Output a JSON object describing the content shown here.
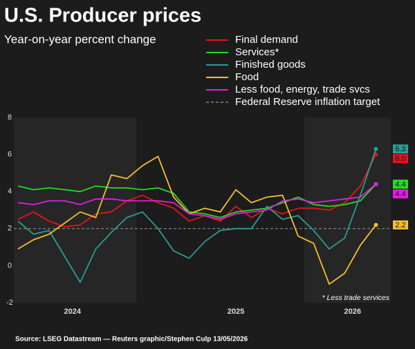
{
  "chart_data": {
    "type": "line",
    "title": "U.S. Producer prices",
    "subtitle": "Year-on-year percent change",
    "annotation": "* Less trade services",
    "source": "Source: LSEG Datastream — Reuters graphic/Stephen Culp 13/05/2026",
    "categories": [
      null,
      null,
      null,
      null,
      null,
      null,
      null,
      null,
      null,
      null,
      null,
      null,
      null,
      null,
      null,
      null,
      null,
      null,
      null,
      null,
      null,
      null,
      null,
      null
    ],
    "xticks": [
      {
        "value": 3.5,
        "label": "2024"
      },
      {
        "value": 14,
        "label": "2025"
      },
      {
        "value": 21.5,
        "label": "2026"
      }
    ],
    "ylim": [
      -2,
      8
    ],
    "yticks": [
      -2,
      0,
      2,
      4,
      6,
      8
    ],
    "series": [
      {
        "name": "Final demand",
        "color": "#e8141b",
        "values": [
          2.5,
          2.9,
          2.4,
          2.1,
          2.2,
          2.8,
          2.9,
          3.5,
          3.8,
          3.4,
          3.1,
          2.4,
          2.7,
          2.4,
          3.2,
          2.6,
          3.1,
          2.8,
          3.1,
          3.1,
          3.0,
          3.4,
          4.3,
          6.0
        ],
        "value_labels": [
          null,
          null,
          null,
          null,
          null,
          null,
          null,
          null,
          null,
          null,
          null,
          null,
          null,
          null,
          null,
          null,
          null,
          null,
          null,
          null,
          null,
          null,
          null,
          "6.0"
        ]
      },
      {
        "name": "Services*",
        "color": "#22dd22",
        "values": [
          4.3,
          4.1,
          4.2,
          4.1,
          4.0,
          4.3,
          4.2,
          4.2,
          4.1,
          4.2,
          3.9,
          2.9,
          2.8,
          2.6,
          2.9,
          3.0,
          3.1,
          3.4,
          3.7,
          3.3,
          3.2,
          3.3,
          3.5,
          4.4
        ],
        "value_labels": [
          null,
          null,
          null,
          null,
          null,
          null,
          null,
          null,
          null,
          null,
          null,
          null,
          null,
          null,
          null,
          null,
          null,
          null,
          null,
          null,
          null,
          null,
          null,
          "4.4"
        ]
      },
      {
        "name": "Finished goods",
        "color": "#2a9d94",
        "values": [
          2.4,
          1.7,
          1.9,
          0.5,
          -0.9,
          0.9,
          1.8,
          2.6,
          2.9,
          2.0,
          0.8,
          0.4,
          1.3,
          1.9,
          2.0,
          2.0,
          3.2,
          2.5,
          2.7,
          1.9,
          0.9,
          1.5,
          3.8,
          6.3
        ],
        "value_labels": [
          null,
          null,
          null,
          null,
          null,
          null,
          null,
          null,
          null,
          null,
          null,
          null,
          null,
          null,
          null,
          null,
          null,
          null,
          null,
          null,
          null,
          null,
          null,
          "6.3"
        ]
      },
      {
        "name": "Food",
        "color": "#f2c12e",
        "values": [
          0.9,
          1.4,
          1.7,
          2.3,
          2.9,
          2.6,
          4.9,
          4.7,
          5.4,
          5.9,
          3.7,
          2.8,
          3.1,
          2.9,
          4.1,
          3.4,
          3.7,
          3.8,
          1.6,
          1.2,
          -1.0,
          -0.4,
          1.1,
          2.2
        ],
        "value_labels": [
          null,
          null,
          null,
          null,
          null,
          null,
          null,
          null,
          null,
          null,
          null,
          null,
          null,
          null,
          null,
          null,
          null,
          null,
          null,
          null,
          null,
          null,
          null,
          "2.2"
        ]
      },
      {
        "name": "Less food, energy, trade svcs",
        "color": "#e020e0",
        "values": [
          3.4,
          3.3,
          3.5,
          3.5,
          3.3,
          3.6,
          3.6,
          3.5,
          3.5,
          3.5,
          3.4,
          2.8,
          2.7,
          2.5,
          2.8,
          2.9,
          3.0,
          3.5,
          3.6,
          3.4,
          3.5,
          3.6,
          3.7,
          4.4
        ],
        "value_labels": [
          null,
          null,
          null,
          null,
          null,
          null,
          null,
          null,
          null,
          null,
          null,
          null,
          null,
          null,
          null,
          null,
          null,
          null,
          null,
          null,
          null,
          null,
          null,
          "4.4"
        ]
      }
    ],
    "reference_line": {
      "name": "Federal Reserve inflation target",
      "value": 2,
      "color": "#999999"
    }
  }
}
